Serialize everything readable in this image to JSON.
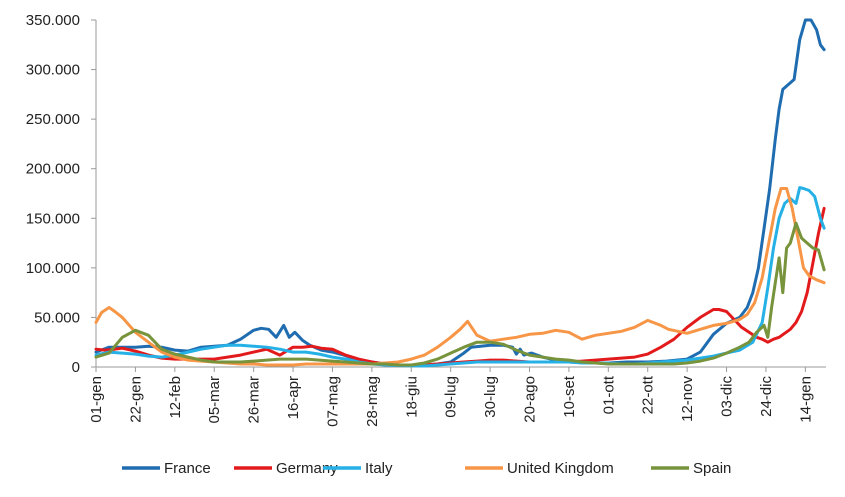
{
  "chart_data": {
    "type": "line",
    "title": "",
    "xlabel": "",
    "ylabel": "",
    "ylim": [
      0,
      350000
    ],
    "yticks": [
      0,
      50000,
      100000,
      150000,
      200000,
      250000,
      300000,
      350000
    ],
    "ytick_labels": [
      "0",
      "50.000",
      "100.000",
      "150.000",
      "200.000",
      "250.000",
      "300.000",
      "350.000"
    ],
    "xlim": [
      0,
      389
    ],
    "xticks": [
      0,
      21,
      42,
      63,
      84,
      105,
      126,
      147,
      168,
      189,
      210,
      231,
      252,
      273,
      294,
      315,
      336,
      357,
      378
    ],
    "xtick_labels": [
      "01-gen",
      "22-gen",
      "12-feb",
      "05-mar",
      "26-mar",
      "16-apr",
      "07-mag",
      "28-mag",
      "18-giu",
      "09-lug",
      "30-lug",
      "20-ago",
      "10-set",
      "01-ott",
      "22-ott",
      "12-nov",
      "03-dic",
      "24-dic",
      "14-gen"
    ],
    "grid": false,
    "legend_position": "bottom",
    "series": [
      {
        "name": "France",
        "color": "#1f6db0",
        "x": [
          0,
          7,
          14,
          21,
          28,
          35,
          42,
          49,
          56,
          63,
          70,
          77,
          84,
          88,
          92,
          96,
          100,
          103,
          106,
          110,
          114,
          120,
          126,
          132,
          140,
          147,
          154,
          161,
          168,
          175,
          182,
          189,
          196,
          200,
          210,
          217,
          222,
          224,
          226,
          228,
          232,
          238,
          245,
          252,
          262,
          273,
          283,
          294,
          304,
          315,
          322,
          329,
          336,
          343,
          347,
          350,
          353,
          356,
          359,
          362,
          364,
          366,
          369,
          372,
          375,
          378,
          381,
          384,
          386,
          388
        ],
        "y": [
          15000,
          20000,
          20000,
          20000,
          21000,
          20000,
          17000,
          16000,
          20000,
          21000,
          22000,
          28000,
          37000,
          39000,
          38000,
          30000,
          42000,
          30000,
          35000,
          27000,
          22000,
          17000,
          15000,
          12000,
          7000,
          5000,
          3000,
          2000,
          2000,
          2000,
          3000,
          5000,
          14000,
          20000,
          22000,
          22000,
          20000,
          13000,
          18000,
          12000,
          14000,
          10000,
          7000,
          5000,
          4000,
          4000,
          5000,
          5000,
          6000,
          8000,
          15000,
          33000,
          44000,
          50000,
          60000,
          75000,
          100000,
          140000,
          180000,
          230000,
          260000,
          280000,
          285000,
          290000,
          330000,
          350000,
          350000,
          340000,
          325000,
          320000
        ]
      },
      {
        "name": "Germany",
        "color": "#e31a1c",
        "x": [
          0,
          5,
          10,
          14,
          21,
          28,
          35,
          42,
          49,
          56,
          63,
          70,
          77,
          84,
          91,
          98,
          105,
          110,
          115,
          120,
          126,
          133,
          140,
          147,
          154,
          161,
          168,
          175,
          182,
          189,
          196,
          203,
          210,
          217,
          224,
          231,
          238,
          245,
          252,
          259,
          266,
          273,
          280,
          287,
          294,
          301,
          308,
          315,
          322,
          329,
          332,
          336,
          340,
          344,
          348,
          352,
          355,
          358,
          361,
          364,
          367,
          370,
          373,
          376,
          379,
          382,
          385,
          388
        ],
        "y": [
          18000,
          17000,
          18000,
          19000,
          16000,
          12000,
          9000,
          8000,
          8000,
          8000,
          8000,
          10000,
          12000,
          15000,
          18000,
          12000,
          20000,
          20000,
          21000,
          19000,
          18000,
          12000,
          8000,
          5000,
          3000,
          2000,
          2000,
          2000,
          3000,
          4000,
          5000,
          6000,
          7000,
          7000,
          6000,
          5000,
          5000,
          5000,
          5000,
          6000,
          7000,
          8000,
          9000,
          10000,
          13000,
          20000,
          28000,
          40000,
          50000,
          58000,
          58000,
          56000,
          48000,
          40000,
          35000,
          30000,
          28000,
          25000,
          28000,
          30000,
          34000,
          38000,
          45000,
          56000,
          75000,
          105000,
          135000,
          160000
        ]
      },
      {
        "name": "Italy",
        "color": "#25b0e6",
        "x": [
          0,
          7,
          14,
          21,
          28,
          35,
          42,
          49,
          56,
          63,
          70,
          77,
          84,
          91,
          98,
          105,
          112,
          119,
          126,
          133,
          140,
          147,
          154,
          161,
          168,
          175,
          182,
          189,
          196,
          203,
          210,
          217,
          224,
          231,
          238,
          245,
          252,
          259,
          266,
          273,
          280,
          287,
          294,
          301,
          308,
          315,
          322,
          329,
          336,
          343,
          350,
          355,
          358,
          361,
          364,
          367,
          370,
          373,
          375,
          377,
          380,
          383,
          386,
          388
        ],
        "y": [
          12000,
          15000,
          14000,
          13000,
          11000,
          10000,
          12000,
          15000,
          18000,
          20000,
          22000,
          22000,
          21000,
          20000,
          18000,
          15000,
          15000,
          13000,
          10000,
          8000,
          5000,
          3000,
          2000,
          1500,
          1200,
          1000,
          2000,
          3000,
          4000,
          5000,
          5000,
          5000,
          5000,
          5000,
          5000,
          5000,
          5000,
          4000,
          4000,
          4000,
          3000,
          3000,
          4000,
          5000,
          6000,
          7000,
          9000,
          11000,
          14000,
          17000,
          25000,
          45000,
          80000,
          120000,
          150000,
          165000,
          170000,
          165000,
          181000,
          180000,
          178000,
          172000,
          150000,
          140000
        ]
      },
      {
        "name": "United Kingdom",
        "color": "#f79646",
        "x": [
          0,
          3,
          7,
          10,
          14,
          21,
          28,
          35,
          42,
          49,
          56,
          63,
          70,
          77,
          84,
          91,
          98,
          105,
          112,
          119,
          126,
          133,
          140,
          147,
          154,
          161,
          168,
          175,
          182,
          189,
          194,
          198,
          203,
          210,
          217,
          224,
          231,
          238,
          245,
          252,
          259,
          266,
          273,
          280,
          287,
          294,
          301,
          305,
          310,
          315,
          322,
          329,
          336,
          343,
          347,
          351,
          355,
          359,
          362,
          365,
          368,
          371,
          374,
          377,
          380,
          384,
          388
        ],
        "y": [
          45000,
          55000,
          60000,
          56000,
          50000,
          35000,
          25000,
          15000,
          10000,
          7000,
          6000,
          5000,
          4000,
          3000,
          3000,
          2000,
          2000,
          2000,
          3000,
          3000,
          3000,
          3000,
          3000,
          3000,
          4000,
          5000,
          8000,
          12000,
          20000,
          30000,
          38000,
          46000,
          32000,
          26000,
          28000,
          30000,
          33000,
          34000,
          37000,
          35000,
          28000,
          32000,
          34000,
          36000,
          40000,
          47000,
          42000,
          38000,
          36000,
          34000,
          38000,
          42000,
          44000,
          48000,
          53000,
          65000,
          90000,
          130000,
          160000,
          180000,
          180000,
          160000,
          130000,
          100000,
          92000,
          88000,
          85000
        ]
      },
      {
        "name": "Spain",
        "color": "#77933c",
        "x": [
          0,
          7,
          14,
          21,
          28,
          35,
          42,
          49,
          56,
          63,
          70,
          77,
          84,
          91,
          98,
          105,
          112,
          119,
          126,
          133,
          140,
          147,
          154,
          161,
          168,
          175,
          182,
          189,
          196,
          203,
          210,
          217,
          224,
          231,
          238,
          245,
          252,
          259,
          266,
          273,
          280,
          287,
          294,
          301,
          308,
          315,
          322,
          329,
          336,
          343,
          348,
          352,
          356,
          358,
          360,
          362,
          364,
          366,
          368,
          370,
          373,
          376,
          379,
          382,
          385,
          388
        ],
        "y": [
          10000,
          14000,
          30000,
          37000,
          32000,
          18000,
          13000,
          10000,
          7000,
          5000,
          5000,
          5000,
          6000,
          7000,
          8000,
          8000,
          8000,
          7000,
          6000,
          5000,
          4000,
          3000,
          3000,
          2000,
          2000,
          4000,
          8000,
          14000,
          20000,
          25000,
          25000,
          23000,
          17000,
          12000,
          10000,
          8000,
          7000,
          5000,
          4000,
          3000,
          3000,
          3000,
          3000,
          3000,
          3000,
          4000,
          6000,
          9000,
          14000,
          20000,
          25000,
          35000,
          42000,
          30000,
          60000,
          85000,
          110000,
          75000,
          120000,
          125000,
          145000,
          130000,
          125000,
          120000,
          118000,
          98000
        ]
      }
    ]
  }
}
